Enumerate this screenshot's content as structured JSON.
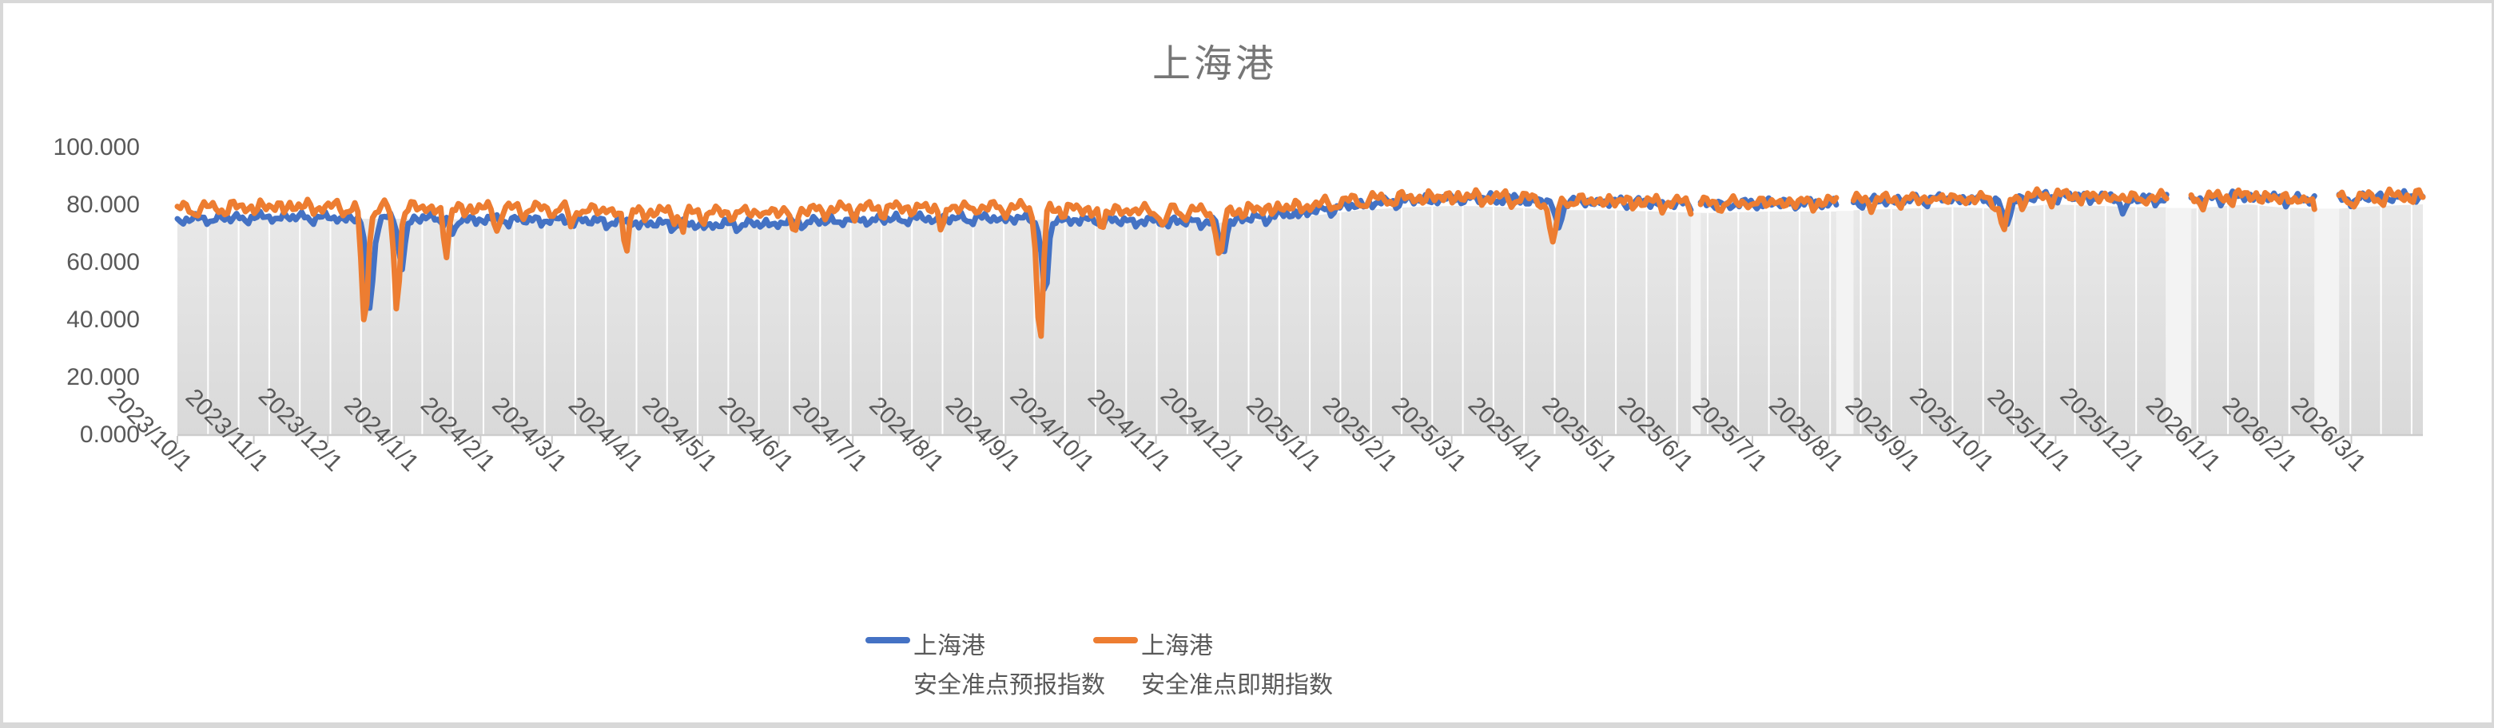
{
  "chart_data": {
    "type": "line",
    "title": "上海港",
    "ylabel": "",
    "xlabel": "",
    "ylim": [
      0,
      100
    ],
    "ytick_labels": [
      "100.000",
      "80.000",
      "60.000",
      "40.000",
      "20.000",
      "0.000"
    ],
    "ytick_values": [
      100,
      80,
      60,
      40,
      20,
      0
    ],
    "grid": "off",
    "legend_position": "bottom-center",
    "x_tick_labels": [
      "2023/10/1",
      "2023/11/1",
      "2023/12/1",
      "2024/1/1",
      "2024/2/1",
      "2024/3/1",
      "2024/4/1",
      "2024/5/1",
      "2024/6/1",
      "2024/7/1",
      "2024/8/1",
      "2024/9/1",
      "2024/10/1",
      "2024/11/1",
      "2024/12/1",
      "2025/1/1",
      "2025/2/1",
      "2025/3/1",
      "2025/4/1",
      "2025/5/1",
      "2025/6/1",
      "2025/7/1",
      "2025/8/1",
      "2025/9/1",
      "2025/10/1",
      "2025/11/1",
      "2025/12/1",
      "2026/1/1",
      "2026/2/1",
      "2026/3/1"
    ],
    "x_start_date": "2023/10/1",
    "total_days": 911,
    "data_gaps_days": [
      [
        614,
        618
      ],
      [
        673,
        680
      ],
      [
        807,
        817
      ],
      [
        867,
        877
      ]
    ],
    "gap_band_color": "#f3f3f3",
    "base_level_keyframes": [
      [
        0,
        77.5
      ],
      [
        20,
        78
      ],
      [
        45,
        78.5
      ],
      [
        70,
        78
      ],
      [
        100,
        78
      ],
      [
        130,
        77.5
      ],
      [
        160,
        77.5
      ],
      [
        190,
        76.5
      ],
      [
        215,
        76
      ],
      [
        240,
        76.5
      ],
      [
        270,
        77.5
      ],
      [
        300,
        78
      ],
      [
        330,
        78
      ],
      [
        360,
        77.5
      ],
      [
        390,
        77
      ],
      [
        420,
        76.5
      ],
      [
        440,
        77.5
      ],
      [
        460,
        79
      ],
      [
        480,
        81
      ],
      [
        500,
        82
      ],
      [
        520,
        82.5
      ],
      [
        540,
        82
      ],
      [
        560,
        81
      ],
      [
        580,
        81
      ],
      [
        600,
        80.5
      ],
      [
        620,
        80
      ],
      [
        645,
        80.5
      ],
      [
        673,
        80.5
      ],
      [
        681,
        81
      ],
      [
        700,
        81.5
      ],
      [
        720,
        82
      ],
      [
        740,
        81.5
      ],
      [
        760,
        83
      ],
      [
        778,
        82.5
      ],
      [
        795,
        82
      ],
      [
        807,
        82
      ],
      [
        817,
        81.5
      ],
      [
        840,
        83
      ],
      [
        852,
        82
      ],
      [
        867,
        81.5
      ],
      [
        877,
        81.5
      ],
      [
        895,
        82.5
      ],
      [
        911,
        83
      ]
    ],
    "area_band": {
      "fill_top": "#e9e9e9",
      "fill_bottom": "#d9d9d9",
      "separator_color": "#ffffff",
      "separator_spacing_px": 38.3,
      "offset_below_base": 3
    },
    "axis_color": "#cccccc",
    "tick_label_color": "#595959",
    "title_color": "#767676",
    "series": [
      {
        "id": "forecast",
        "name": "上海港 安全准点预报指数",
        "legend_lines": [
          "上海港",
          "安全准点预报指数"
        ],
        "color": "#4472C4",
        "offset_keyframes": [
          [
            0,
            -2.6
          ],
          [
            120,
            -2.6
          ],
          [
            220,
            -3.0
          ],
          [
            330,
            -2.6
          ],
          [
            400,
            -2.6
          ],
          [
            440,
            -1.8
          ],
          [
            470,
            -1.0
          ],
          [
            500,
            -0.4
          ],
          [
            530,
            0.1
          ],
          [
            700,
            0.2
          ],
          [
            911,
            0.2
          ]
        ],
        "noise": {
          "amp1": 1.0,
          "f1": 1.9,
          "p1": 0.7,
          "amp2": 0.8,
          "f2": 0.73,
          "p2": 2.1,
          "spike": 1.4,
          "fs": 0.47,
          "ps": 1.3
        },
        "dips": [
          [
            78,
            31,
            2.0
          ],
          [
            91,
            17,
            1.8
          ],
          [
            112,
            6,
            1.5
          ],
          [
            352,
            27,
            1.8
          ],
          [
            424,
            12,
            1.8
          ],
          [
            560,
            9,
            1.8
          ],
          [
            742,
            8,
            2.2
          ],
          [
            790,
            4,
            2.0
          ]
        ]
      },
      {
        "id": "spot",
        "name": "上海港 安全准点即期指数",
        "legend_lines": [
          "上海港",
          "安全准点即期指数"
        ],
        "color": "#ED7D31",
        "offset_keyframes": [
          [
            0,
            1.3
          ],
          [
            440,
            1.3
          ],
          [
            470,
            1.0
          ],
          [
            500,
            0.7
          ],
          [
            911,
            0.6
          ]
        ],
        "noise": {
          "amp1": 1.2,
          "f1": 1.63,
          "p1": 3.1,
          "amp2": 1.0,
          "f2": 0.61,
          "p2": 0.4,
          "spike": 2.6,
          "fs": 0.517,
          "ps": 4.2
        },
        "dips": [
          [
            76,
            43,
            1.7
          ],
          [
            89,
            35,
            1.6
          ],
          [
            109,
            16,
            1.5
          ],
          [
            130,
            7,
            1.3
          ],
          [
            160,
            6,
            1.3
          ],
          [
            182,
            13,
            1.5
          ],
          [
            205,
            6,
            1.3
          ],
          [
            250,
            7,
            1.4
          ],
          [
            310,
            7,
            1.4
          ],
          [
            350,
            49,
            1.6
          ],
          [
            375,
            7,
            1.4
          ],
          [
            400,
            6,
            1.3
          ],
          [
            423,
            18,
            1.6
          ],
          [
            558,
            17,
            1.7
          ],
          [
            741,
            10,
            2.2
          ],
          [
            868,
            8,
            1.6
          ]
        ]
      }
    ]
  }
}
